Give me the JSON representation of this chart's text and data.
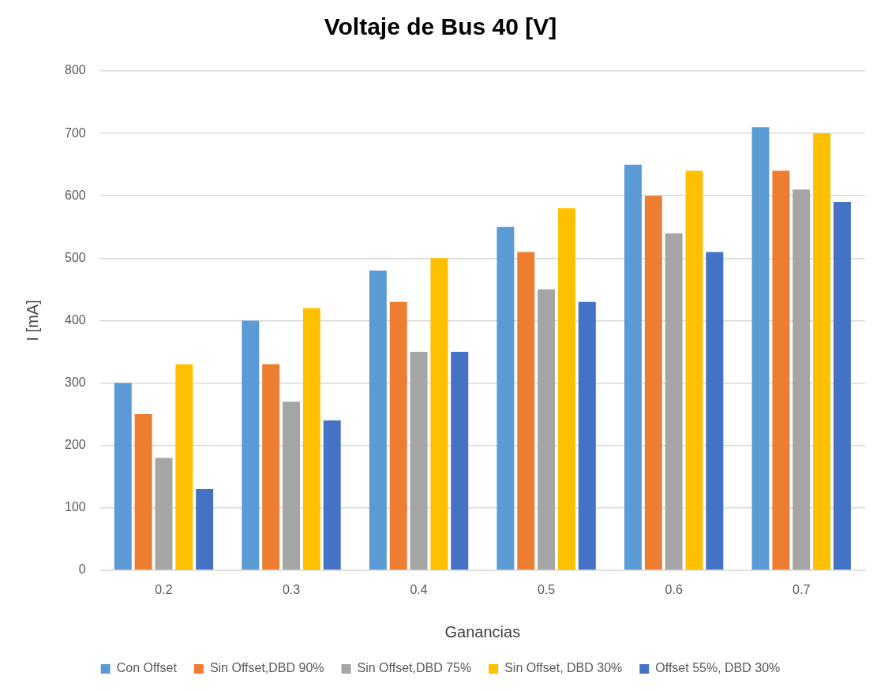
{
  "chart_data": {
    "type": "bar",
    "title": "Voltaje de Bus 40 [V]",
    "xlabel": "Ganancias",
    "ylabel": "I [mA]",
    "categories": [
      "0.2",
      "0.3",
      "0.4",
      "0.5",
      "0.6",
      "0.7"
    ],
    "series": [
      {
        "name": "Con Offset",
        "color": "#5b9bd5",
        "values": [
          300,
          400,
          480,
          550,
          650,
          710
        ]
      },
      {
        "name": "Sin Offset,DBD 90%",
        "color": "#ed7d31",
        "values": [
          250,
          330,
          430,
          510,
          600,
          640
        ]
      },
      {
        "name": "Sin Offset,DBD 75%",
        "color": "#a5a5a5",
        "values": [
          180,
          270,
          350,
          450,
          540,
          610
        ]
      },
      {
        "name": "Sin Offset, DBD 30%",
        "color": "#ffc000",
        "values": [
          330,
          420,
          500,
          580,
          640,
          700
        ]
      },
      {
        "name": "Offset 55%, DBD 30%",
        "color": "#4472c4",
        "values": [
          130,
          240,
          350,
          430,
          510,
          590
        ]
      }
    ],
    "ylim": [
      0,
      800
    ],
    "yticks": [
      0,
      100,
      200,
      300,
      400,
      500,
      600,
      700,
      800
    ],
    "grid": "y",
    "legend": "bottom"
  }
}
